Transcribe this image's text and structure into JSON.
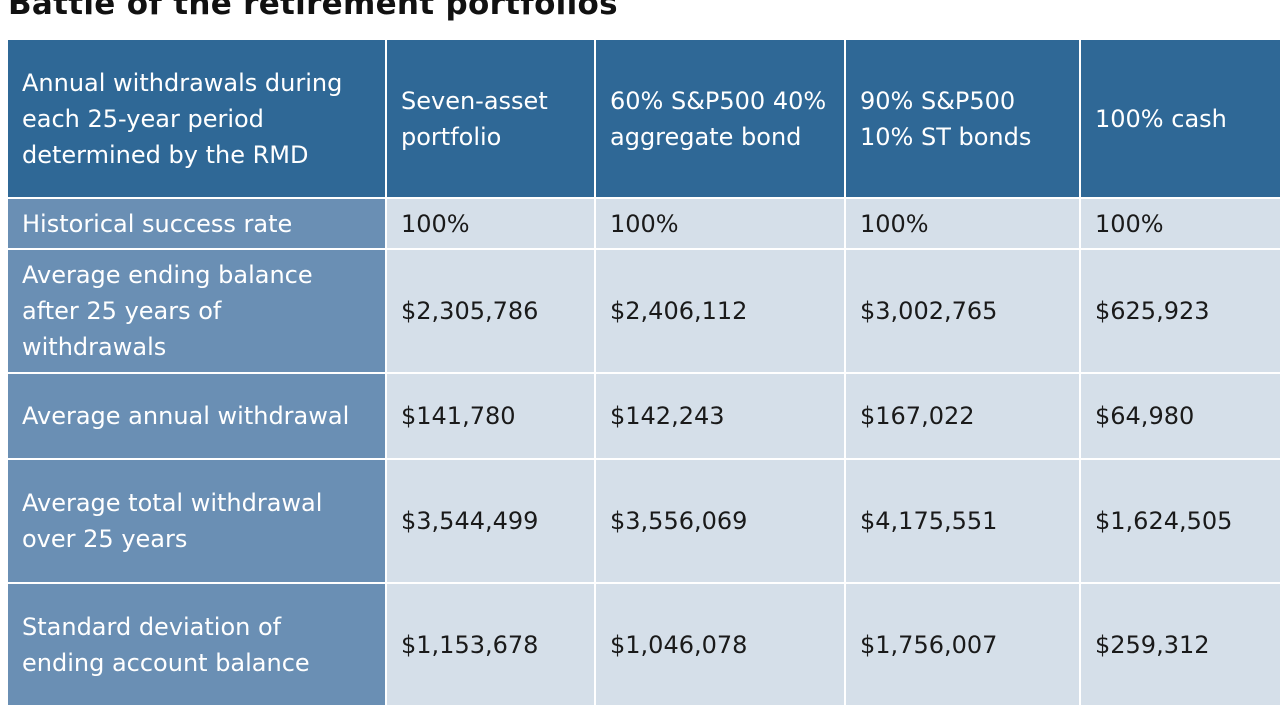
{
  "title": "Battle of the retirement portfolios",
  "table": {
    "headers": [
      "Annual withdrawals during each 25-year period determined by the RMD",
      "Seven-asset portfolio",
      "60% S&P500 40% aggregate bond",
      "90% S&P500 10% ST bonds",
      "100% cash"
    ],
    "rows": [
      {
        "label": "Historical success rate",
        "values": [
          "100%",
          "100%",
          "100%",
          "100%"
        ]
      },
      {
        "label": "Average ending balance after 25 years of withdrawals",
        "values": [
          "$2,305,786",
          "$2,406,112",
          "$3,002,765",
          "$625,923"
        ]
      },
      {
        "label": "Average annual withdrawal",
        "values": [
          "$141,780",
          "$142,243",
          "$167,022",
          "$64,980"
        ]
      },
      {
        "label": "Average total withdrawal over 25 years",
        "values": [
          "$3,544,499",
          "$3,556,069",
          "$4,175,551",
          "$1,624,505"
        ]
      },
      {
        "label": "Standard deviation of ending account balance",
        "values": [
          "$1,153,678",
          "$1,046,078",
          "$1,756,007",
          "$259,312"
        ]
      }
    ]
  }
}
